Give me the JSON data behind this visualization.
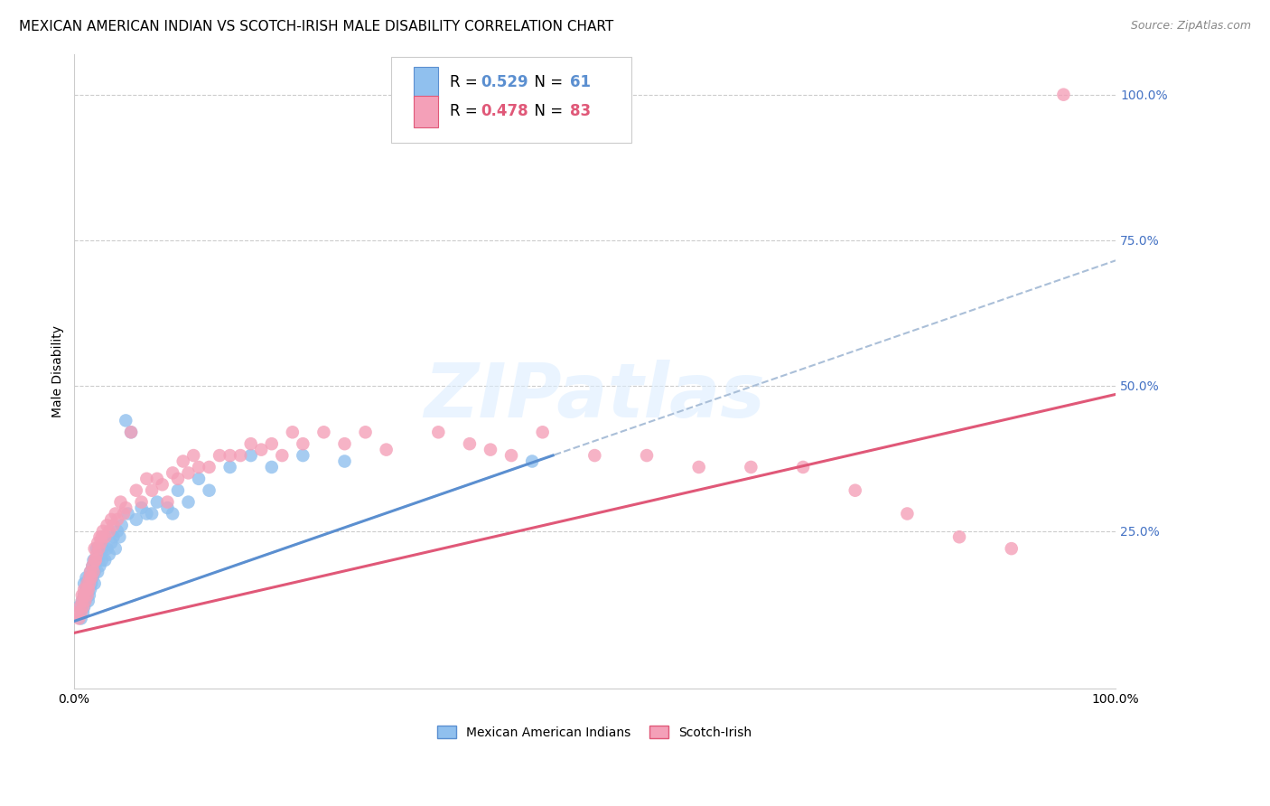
{
  "title": "MEXICAN AMERICAN INDIAN VS SCOTCH-IRISH MALE DISABILITY CORRELATION CHART",
  "source": "Source: ZipAtlas.com",
  "ylabel": "Male Disability",
  "ytick_labels": [
    "100.0%",
    "75.0%",
    "50.0%",
    "25.0%"
  ],
  "ytick_values": [
    1.0,
    0.75,
    0.5,
    0.25
  ],
  "xlim": [
    0.0,
    1.0
  ],
  "ylim": [
    -0.02,
    1.07
  ],
  "r_blue": 0.529,
  "n_blue": 61,
  "r_pink": 0.478,
  "n_pink": 83,
  "legend_label_blue": "Mexican American Indians",
  "legend_label_pink": "Scotch-Irish",
  "color_blue": "#90C0EE",
  "color_pink": "#F4A0B8",
  "line_blue": "#5B8FD0",
  "line_pink": "#E05878",
  "line_dashed_color": "#AABFD8",
  "background_color": "#FFFFFF",
  "blue_intercept": 0.095,
  "blue_slope": 0.62,
  "pink_intercept": 0.075,
  "pink_slope": 0.41,
  "blue_line_xmax": 0.46,
  "blue_x": [
    0.005,
    0.007,
    0.008,
    0.009,
    0.01,
    0.01,
    0.01,
    0.011,
    0.012,
    0.012,
    0.013,
    0.013,
    0.014,
    0.014,
    0.015,
    0.015,
    0.016,
    0.016,
    0.017,
    0.018,
    0.018,
    0.019,
    0.02,
    0.02,
    0.021,
    0.022,
    0.023,
    0.024,
    0.025,
    0.026,
    0.027,
    0.028,
    0.03,
    0.032,
    0.034,
    0.036,
    0.038,
    0.04,
    0.042,
    0.044,
    0.046,
    0.05,
    0.052,
    0.055,
    0.06,
    0.065,
    0.07,
    0.075,
    0.08,
    0.09,
    0.095,
    0.1,
    0.11,
    0.12,
    0.13,
    0.15,
    0.17,
    0.19,
    0.22,
    0.26,
    0.44
  ],
  "blue_y": [
    0.12,
    0.1,
    0.13,
    0.11,
    0.14,
    0.12,
    0.16,
    0.13,
    0.15,
    0.17,
    0.14,
    0.16,
    0.13,
    0.15,
    0.14,
    0.17,
    0.15,
    0.18,
    0.16,
    0.19,
    0.17,
    0.2,
    0.16,
    0.18,
    0.2,
    0.22,
    0.18,
    0.2,
    0.19,
    0.21,
    0.2,
    0.22,
    0.2,
    0.22,
    0.21,
    0.23,
    0.24,
    0.22,
    0.25,
    0.24,
    0.26,
    0.44,
    0.28,
    0.42,
    0.27,
    0.29,
    0.28,
    0.28,
    0.3,
    0.29,
    0.28,
    0.32,
    0.3,
    0.34,
    0.32,
    0.36,
    0.38,
    0.36,
    0.38,
    0.37,
    0.37
  ],
  "pink_x": [
    0.003,
    0.005,
    0.006,
    0.007,
    0.008,
    0.008,
    0.009,
    0.01,
    0.01,
    0.011,
    0.012,
    0.013,
    0.013,
    0.014,
    0.015,
    0.015,
    0.016,
    0.017,
    0.018,
    0.019,
    0.02,
    0.02,
    0.021,
    0.022,
    0.023,
    0.024,
    0.025,
    0.026,
    0.027,
    0.028,
    0.03,
    0.032,
    0.034,
    0.036,
    0.038,
    0.04,
    0.042,
    0.045,
    0.048,
    0.05,
    0.055,
    0.06,
    0.065,
    0.07,
    0.075,
    0.08,
    0.085,
    0.09,
    0.095,
    0.1,
    0.105,
    0.11,
    0.115,
    0.12,
    0.13,
    0.14,
    0.15,
    0.16,
    0.17,
    0.18,
    0.19,
    0.2,
    0.21,
    0.22,
    0.24,
    0.26,
    0.28,
    0.3,
    0.35,
    0.38,
    0.4,
    0.42,
    0.45,
    0.5,
    0.55,
    0.6,
    0.65,
    0.7,
    0.75,
    0.8,
    0.85,
    0.9,
    0.95
  ],
  "pink_y": [
    0.11,
    0.1,
    0.12,
    0.11,
    0.13,
    0.14,
    0.12,
    0.14,
    0.15,
    0.13,
    0.15,
    0.14,
    0.16,
    0.15,
    0.17,
    0.16,
    0.18,
    0.17,
    0.19,
    0.18,
    0.2,
    0.22,
    0.2,
    0.21,
    0.23,
    0.22,
    0.24,
    0.23,
    0.24,
    0.25,
    0.24,
    0.26,
    0.25,
    0.27,
    0.26,
    0.28,
    0.27,
    0.3,
    0.28,
    0.29,
    0.42,
    0.32,
    0.3,
    0.34,
    0.32,
    0.34,
    0.33,
    0.3,
    0.35,
    0.34,
    0.37,
    0.35,
    0.38,
    0.36,
    0.36,
    0.38,
    0.38,
    0.38,
    0.4,
    0.39,
    0.4,
    0.38,
    0.42,
    0.4,
    0.42,
    0.4,
    0.42,
    0.39,
    0.42,
    0.4,
    0.39,
    0.38,
    0.42,
    0.38,
    0.38,
    0.36,
    0.36,
    0.36,
    0.32,
    0.28,
    0.24,
    0.22,
    1.0
  ],
  "title_fontsize": 11,
  "source_fontsize": 9,
  "ylabel_fontsize": 10,
  "tick_fontsize": 10,
  "legend_fontsize": 12
}
